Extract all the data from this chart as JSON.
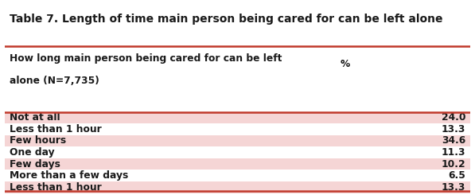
{
  "title": "Table 7. Length of time main person being cared for can be left alone",
  "header_col1": "How long main person being cared for can be left",
  "header_col2": "alone (N=7,735)",
  "header_val": "%",
  "rows": [
    {
      "label": "Not at all",
      "value": "24.0",
      "shaded": true
    },
    {
      "label": "Less than 1 hour",
      "value": "13.3",
      "shaded": false
    },
    {
      "label": "Few hours",
      "value": "34.6",
      "shaded": true
    },
    {
      "label": "One day",
      "value": "11.3",
      "shaded": false
    },
    {
      "label": "Few days",
      "value": "10.2",
      "shaded": true
    },
    {
      "label": "More than a few days",
      "value": "6.5",
      "shaded": false
    },
    {
      "label": "Less than 1 hour",
      "value": "13.3",
      "shaded": true
    }
  ],
  "bg_color": "#ffffff",
  "shaded_color": "#f5d5d5",
  "text_color": "#1a1a1a",
  "border_color": "#c0392b",
  "title_fontsize": 10.0,
  "header_fontsize": 8.8,
  "row_fontsize": 8.8
}
